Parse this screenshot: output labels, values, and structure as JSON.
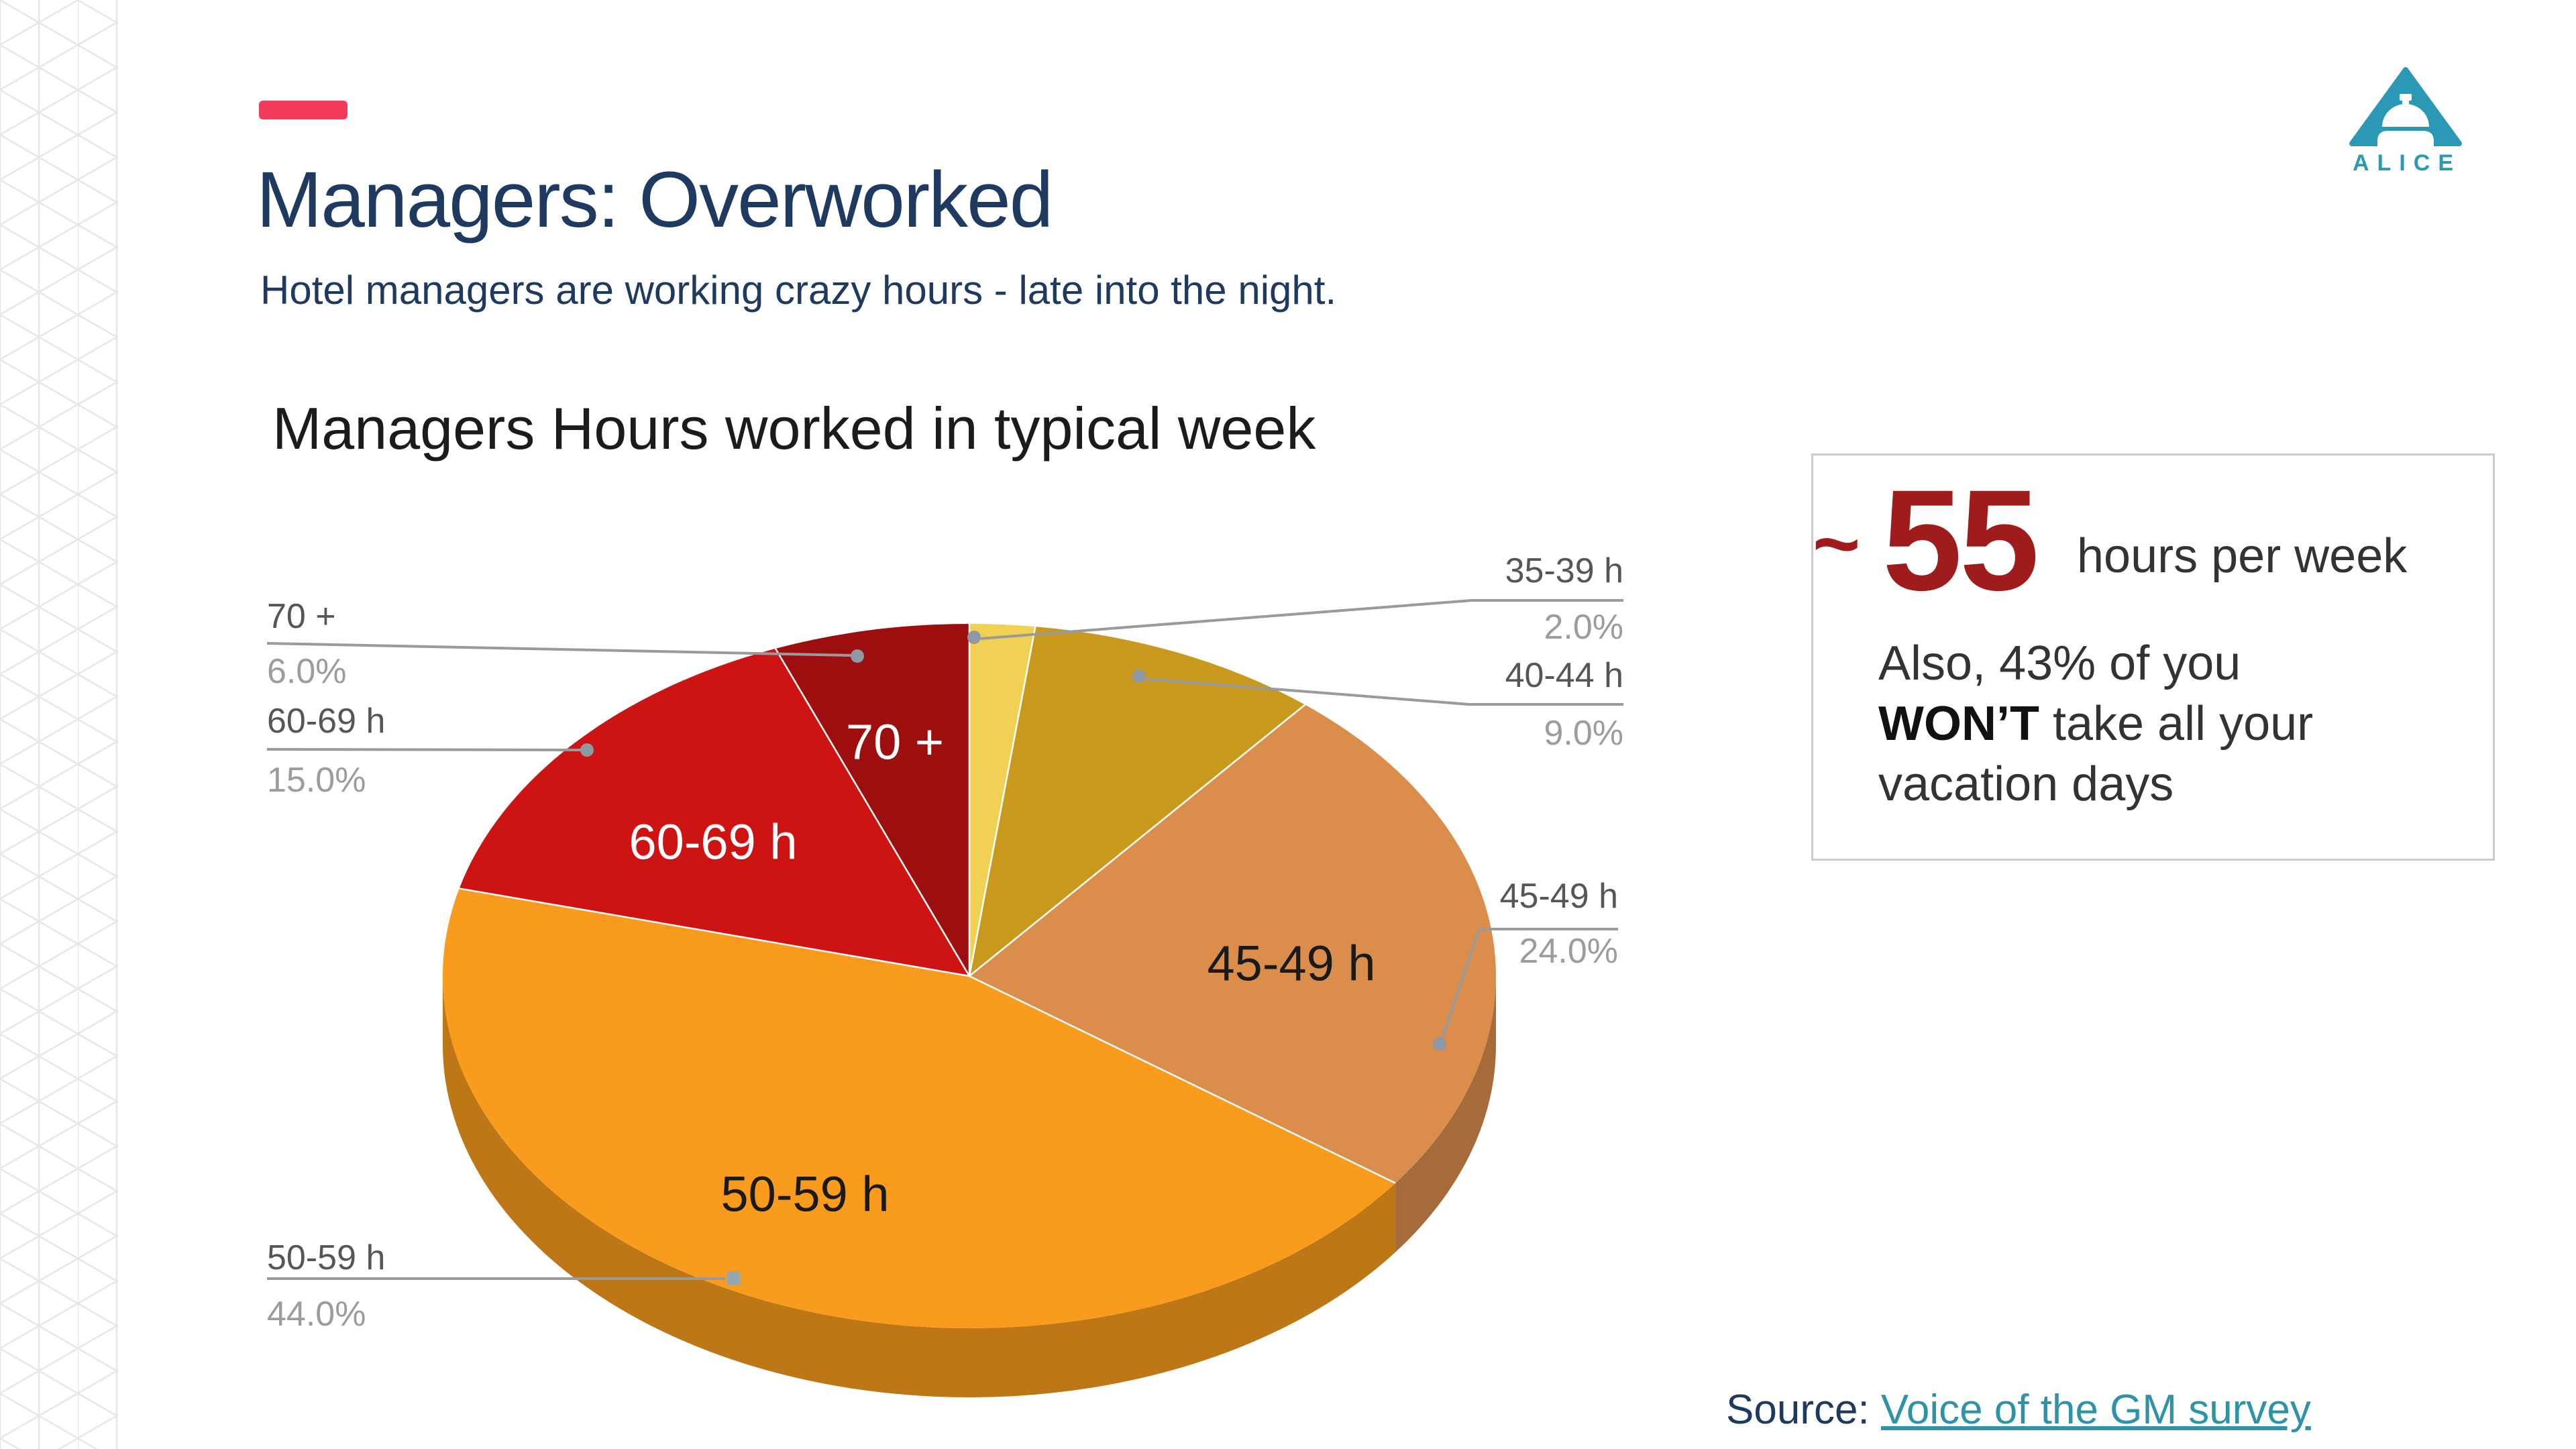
{
  "header": {
    "title": "Managers: Overworked",
    "subtitle": "Hotel managers are working crazy hours - late into the night.",
    "accent_dash_color": "#F23A5B",
    "text_color": "#1F3A60"
  },
  "logo": {
    "brand": "ALICE",
    "icon": "service-bell-in-triangle",
    "color": "#2B99B6"
  },
  "chart_data": {
    "type": "pie",
    "style": "3d",
    "title": "Managers Hours worked in typical week",
    "start_angle_deg": 0,
    "direction": "clockwise",
    "legend_position": "none",
    "categories": [
      "35-39 h",
      "40-44 h",
      "45-49 h",
      "50-59 h",
      "60-69 h",
      "70 +"
    ],
    "values": [
      2.0,
      9.0,
      24.0,
      44.0,
      15.0,
      6.0
    ],
    "slices": [
      {
        "label": "35-39 h",
        "value": 2.0,
        "pct_label": "2.0%",
        "color": "#F0D153"
      },
      {
        "label": "40-44 h",
        "value": 9.0,
        "pct_label": "9.0%",
        "color": "#C8991C"
      },
      {
        "label": "45-49 h",
        "value": 24.0,
        "pct_label": "24.0%",
        "color": "#DB8D4C"
      },
      {
        "label": "50-59 h",
        "value": 44.0,
        "pct_label": "44.0%",
        "color": "#F99C1D"
      },
      {
        "label": "60-69 h",
        "value": 15.0,
        "pct_label": "15.0%",
        "color": "#CE1313"
      },
      {
        "label": "70 +",
        "value": 6.0,
        "pct_label": "6.0%",
        "color": "#9D0E0E"
      }
    ]
  },
  "callout": {
    "approx": "~",
    "number": "55",
    "unit": "hours per week",
    "note_line1": "Also, 43% of you",
    "note_line2_bold": "WON’T",
    "note_line2_rest": " take all your",
    "note_line3": "vacation days",
    "number_color": "#A01B1B",
    "border_color": "#CBCBCB"
  },
  "source": {
    "prefix": "Source: ",
    "link_text": "Voice of the GM survey",
    "link_color": "#2E93A6"
  }
}
